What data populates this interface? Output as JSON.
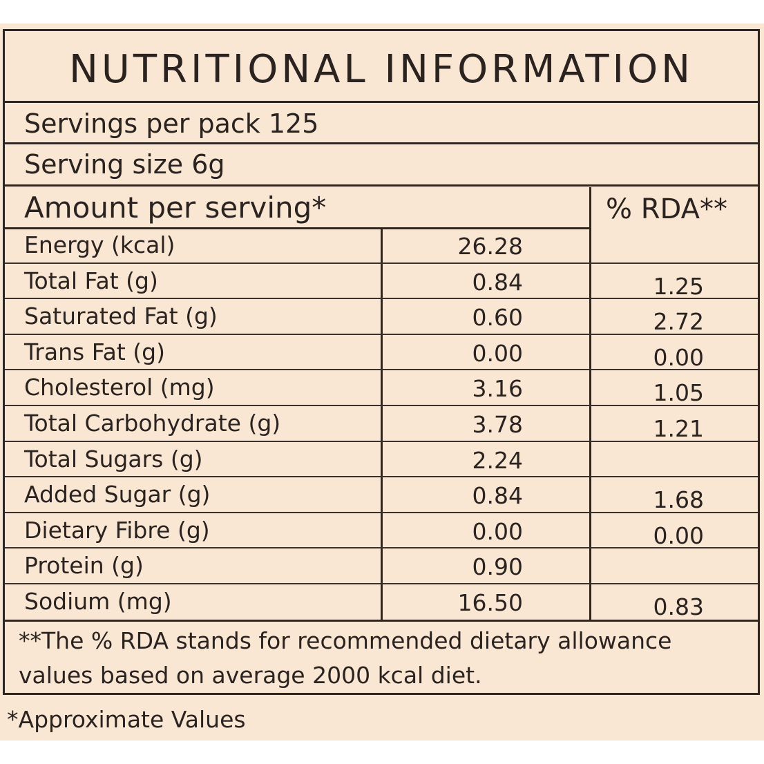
{
  "title": "NUTRITIONAL INFORMATION",
  "servings_per_pack": "Servings per pack 125",
  "serving_size": "Serving size 6g",
  "amount_header": "Amount per serving*",
  "rda_header": "% RDA**",
  "rows": [
    {
      "label": "Energy (kcal)",
      "value": "26.28",
      "rda": ""
    },
    {
      "label": "Total Fat (g)",
      "value": "0.84",
      "rda": "1.25"
    },
    {
      "label": "Saturated Fat (g)",
      "value": "0.60",
      "rda": "2.72"
    },
    {
      "label": "Trans Fat (g)",
      "value": "0.00",
      "rda": "0.00"
    },
    {
      "label": "Cholesterol (mg)",
      "value": "3.16",
      "rda": "1.05"
    },
    {
      "label": "Total Carbohydrate (g)",
      "value": "3.78",
      "rda": "1.21"
    },
    {
      "label": "Total Sugars (g)",
      "value": "2.24",
      "rda": ""
    },
    {
      "label": "Added  Sugar (g)",
      "value": "0.84",
      "rda": "1.68"
    },
    {
      "label": "Dietary Fibre (g)",
      "value": "0.00",
      "rda": "0.00"
    },
    {
      "label": "Protein (g)",
      "value": "0.90",
      "rda": ""
    },
    {
      "label": "Sodium (mg)",
      "value": "16.50",
      "rda": "0.83"
    }
  ],
  "rda_note_line1": "**The % RDA stands for recommended dietary allowance",
  "rda_note_line2": "values based on average 2000 kcal diet.",
  "footnote": "*Approximate Values",
  "colors": {
    "background": "#f9e6d3",
    "ink": "#2a2320"
  }
}
